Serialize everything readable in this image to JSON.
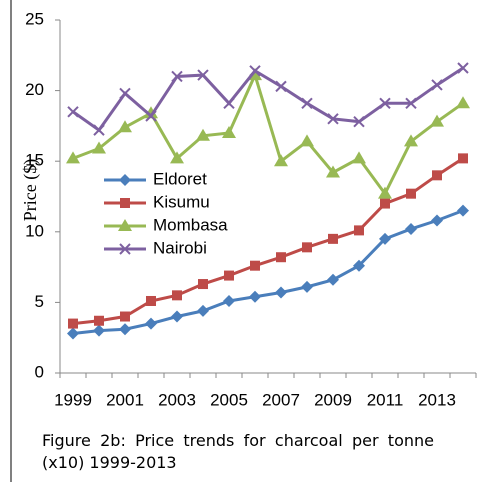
{
  "chart_data": {
    "type": "line",
    "y_label": "Price ($)",
    "caption": "Figure 2b: Price trends for charcoal per tonne (x10) 1999-2013",
    "categories": [
      "1999",
      null,
      "2001",
      null,
      "2003",
      null,
      "2005",
      null,
      "2007",
      null,
      "2009",
      null,
      "2011",
      null,
      "2013",
      null
    ],
    "ylim": [
      0,
      25
    ],
    "yticks": [
      0,
      5,
      10,
      15,
      20,
      25
    ],
    "series": [
      {
        "name": "Eldoret",
        "color": "#4a7ebb",
        "marker": "diamond",
        "values": [
          2.8,
          3.0,
          3.1,
          3.5,
          4.0,
          4.4,
          5.1,
          5.4,
          5.7,
          6.1,
          6.6,
          7.6,
          9.5,
          10.2,
          10.8,
          11.5
        ]
      },
      {
        "name": "Kisumu",
        "color": "#be4b48",
        "marker": "square",
        "values": [
          3.5,
          3.7,
          4.0,
          5.1,
          5.5,
          6.3,
          6.9,
          7.6,
          8.2,
          8.9,
          9.5,
          10.1,
          12.0,
          12.7,
          14.0,
          15.2
        ]
      },
      {
        "name": "Mombasa",
        "color": "#98b954",
        "marker": "triangle",
        "values": [
          15.2,
          15.9,
          17.4,
          18.4,
          15.2,
          16.8,
          17.0,
          21.1,
          15.0,
          16.4,
          14.2,
          15.2,
          12.7,
          16.4,
          17.8,
          19.1
        ]
      },
      {
        "name": "Nairobi",
        "color": "#7d60a0",
        "marker": "x",
        "values": [
          18.5,
          17.2,
          19.8,
          18.2,
          21.0,
          21.1,
          19.1,
          21.4,
          20.3,
          19.1,
          18.0,
          17.8,
          19.1,
          19.1,
          20.4,
          21.6
        ]
      }
    ]
  }
}
